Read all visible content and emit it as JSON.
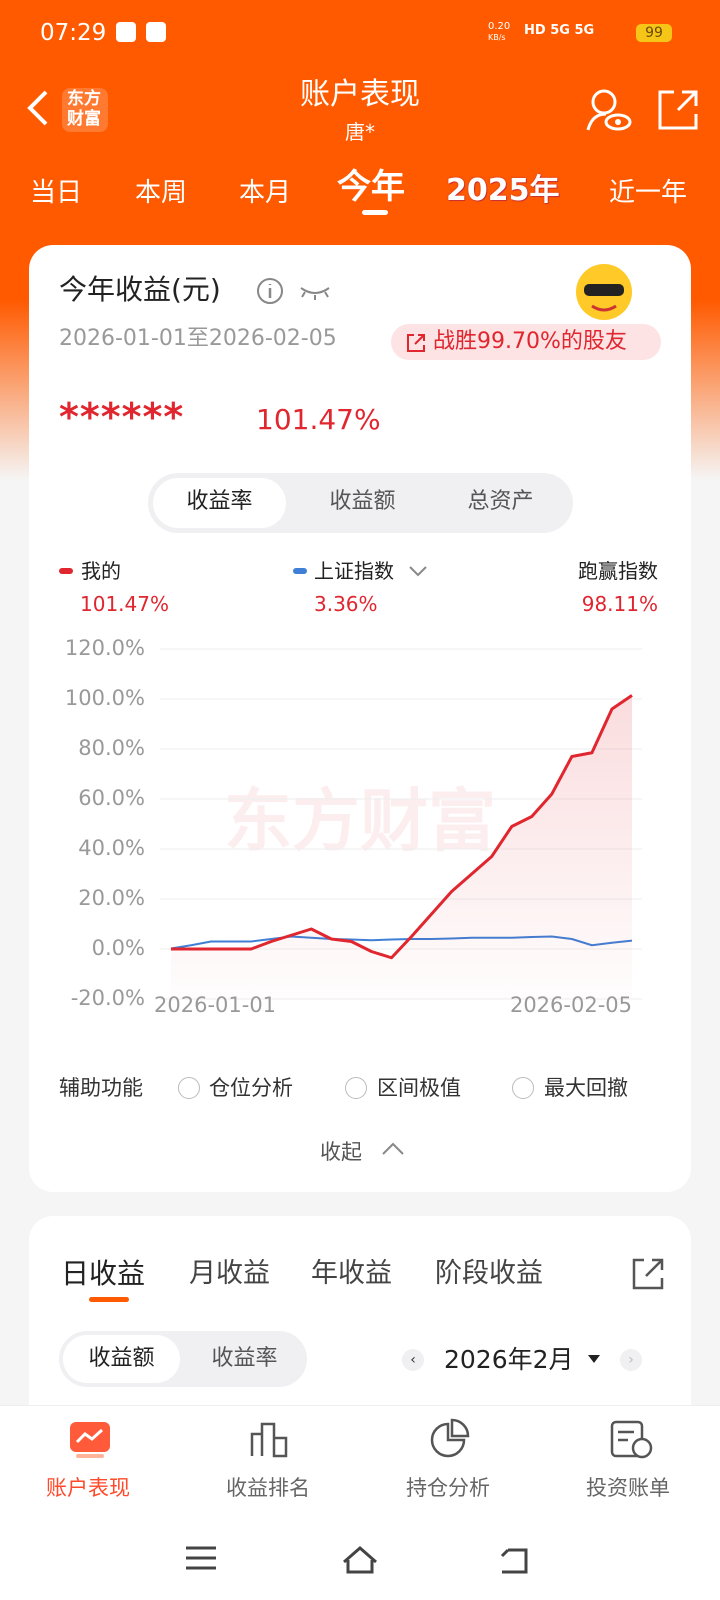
{
  "status_bar": {
    "time": "07:29",
    "net_speed": "0.20",
    "net_unit": "KB/s",
    "battery": "99"
  },
  "header": {
    "logo": [
      "东方",
      "财富"
    ],
    "title": "账户表现",
    "subtitle": "唐*"
  },
  "period_tabs": [
    "当日",
    "本周",
    "本月",
    "今年",
    "2025年",
    "近一年"
  ],
  "summary": {
    "title": "今年收益(元)",
    "date_range": "2026-01-01至2026-02-05",
    "beat": "战胜99.70%的股友",
    "masked_amount": "******",
    "return": "101.47%"
  },
  "metric_toggle": [
    "收益率",
    "收益额",
    "总资产"
  ],
  "chart_data": {
    "type": "line",
    "watermark": "东方财富",
    "categories": [
      "2026-01-01",
      null,
      null,
      null,
      null,
      null,
      null,
      null,
      null,
      null,
      null,
      null,
      null,
      null,
      null,
      null,
      null,
      null,
      null,
      null,
      null,
      null,
      null,
      "2026-02-05"
    ],
    "series": [
      {
        "name": "我的",
        "latest": "101.47%",
        "color": "#e0262f",
        "values": [
          0,
          0,
          0,
          0,
          0,
          3,
          5.5,
          8,
          4,
          3,
          -1,
          -3.5,
          5,
          14,
          23,
          30,
          37,
          49,
          53,
          62,
          77,
          78.5,
          96,
          101.47
        ]
      },
      {
        "name": "上证指数",
        "latest": "3.36%",
        "color": "#3f7fd6",
        "values": [
          0.2,
          1.5,
          3,
          3,
          3,
          4,
          5,
          4.5,
          4,
          3.8,
          3.5,
          3.8,
          4,
          4,
          4.2,
          4.5,
          4.5,
          4.5,
          4.8,
          5,
          4,
          1.5,
          2.5,
          3.36
        ]
      }
    ],
    "outperform": {
      "label": "跑赢指数",
      "value": "98.11%"
    },
    "ylim": [
      -20,
      120
    ],
    "yticks": [
      {
        "value": 120,
        "label": "120.0%"
      },
      {
        "value": 100,
        "label": "100.0%"
      },
      {
        "value": 80,
        "label": "80.0%"
      },
      {
        "value": 60,
        "label": "60.0%"
      },
      {
        "value": 40,
        "label": "40.0%"
      },
      {
        "value": 20,
        "label": "20.0%"
      },
      {
        "value": 0,
        "label": "0.0%"
      },
      {
        "value": -20,
        "label": "-20.0%"
      }
    ],
    "grid": true
  },
  "aux": {
    "label": "辅助功能",
    "options": [
      "仓位分析",
      "区间极值",
      "最大回撤"
    ],
    "collapse": "收起"
  },
  "earnings_tabs": [
    "日收益",
    "月收益",
    "年收益",
    "阶段收益"
  ],
  "earnings_toggle": [
    "收益额",
    "收益率"
  ],
  "month": "2026年2月",
  "bottom_nav": [
    "账户表现",
    "收益排名",
    "持仓分析",
    "投资账单"
  ]
}
